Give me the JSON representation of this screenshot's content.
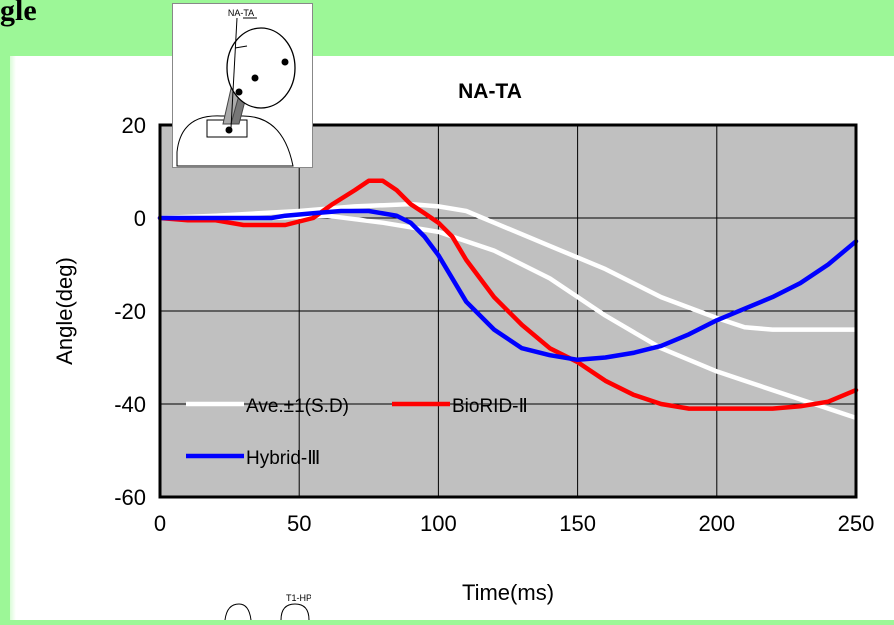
{
  "heading": "gle",
  "inset_top_label": "NA-TA",
  "inset_bottom_label": "T1-HP",
  "chart_data": {
    "type": "line",
    "title": "NA-TA",
    "xlabel": "Time(ms)",
    "ylabel": "Angle(deg)",
    "xlim": [
      0,
      250
    ],
    "ylim": [
      -60,
      20
    ],
    "xticks": [
      0,
      50,
      100,
      150,
      200,
      250
    ],
    "yticks": [
      20,
      0,
      -20,
      -40,
      -60
    ],
    "grid": true,
    "plot_background": "#c0c0c0",
    "legend": [
      {
        "label": "Ave.±1(S.D)",
        "color": "#ffffff"
      },
      {
        "label": "BioRID-Ⅱ",
        "color": "#ff0000"
      },
      {
        "label": "Hybrid-Ⅲ",
        "color": "#0000ff"
      }
    ],
    "series": [
      {
        "name": "Ave.+1(S.D)",
        "color": "#ffffff",
        "points": [
          [
            0,
            0
          ],
          [
            20,
            0.5
          ],
          [
            50,
            1.5
          ],
          [
            70,
            2.5
          ],
          [
            90,
            3
          ],
          [
            100,
            2.5
          ],
          [
            110,
            1.5
          ],
          [
            120,
            -1
          ],
          [
            140,
            -6
          ],
          [
            160,
            -11
          ],
          [
            180,
            -17
          ],
          [
            200,
            -21.5
          ],
          [
            210,
            -23.5
          ],
          [
            220,
            -24
          ],
          [
            250,
            -24
          ]
        ]
      },
      {
        "name": "Ave.-1(S.D)",
        "color": "#ffffff",
        "points": [
          [
            0,
            0
          ],
          [
            20,
            0
          ],
          [
            40,
            0
          ],
          [
            60,
            0.5
          ],
          [
            80,
            -1
          ],
          [
            100,
            -3
          ],
          [
            120,
            -7
          ],
          [
            140,
            -13
          ],
          [
            160,
            -21
          ],
          [
            180,
            -28
          ],
          [
            200,
            -33
          ],
          [
            220,
            -37
          ],
          [
            240,
            -41
          ],
          [
            250,
            -43
          ]
        ]
      },
      {
        "name": "BioRID-Ⅱ",
        "color": "#ff0000",
        "points": [
          [
            0,
            0
          ],
          [
            10,
            -0.5
          ],
          [
            20,
            -0.5
          ],
          [
            30,
            -1.5
          ],
          [
            45,
            -1.5
          ],
          [
            55,
            0
          ],
          [
            62,
            3
          ],
          [
            70,
            6
          ],
          [
            75,
            8
          ],
          [
            80,
            8
          ],
          [
            85,
            6
          ],
          [
            90,
            3
          ],
          [
            95,
            1
          ],
          [
            100,
            -1
          ],
          [
            105,
            -4
          ],
          [
            110,
            -9
          ],
          [
            120,
            -17
          ],
          [
            130,
            -23
          ],
          [
            140,
            -28
          ],
          [
            150,
            -31
          ],
          [
            160,
            -35
          ],
          [
            170,
            -38
          ],
          [
            180,
            -40
          ],
          [
            190,
            -41
          ],
          [
            200,
            -41
          ],
          [
            210,
            -41
          ],
          [
            220,
            -41
          ],
          [
            230,
            -40.5
          ],
          [
            240,
            -39.5
          ],
          [
            250,
            -37
          ]
        ]
      },
      {
        "name": "Hybrid-Ⅲ",
        "color": "#0000ff",
        "points": [
          [
            0,
            0
          ],
          [
            20,
            0
          ],
          [
            40,
            0
          ],
          [
            45,
            0.5
          ],
          [
            55,
            1
          ],
          [
            65,
            1.5
          ],
          [
            75,
            1.5
          ],
          [
            85,
            0.5
          ],
          [
            90,
            -1
          ],
          [
            95,
            -4
          ],
          [
            100,
            -8
          ],
          [
            110,
            -18
          ],
          [
            120,
            -24
          ],
          [
            130,
            -28
          ],
          [
            140,
            -29.5
          ],
          [
            150,
            -30.5
          ],
          [
            160,
            -30
          ],
          [
            170,
            -29
          ],
          [
            180,
            -27.5
          ],
          [
            190,
            -25
          ],
          [
            200,
            -22
          ],
          [
            210,
            -19.5
          ],
          [
            220,
            -17
          ],
          [
            230,
            -14
          ],
          [
            240,
            -10
          ],
          [
            250,
            -5
          ]
        ]
      }
    ]
  }
}
